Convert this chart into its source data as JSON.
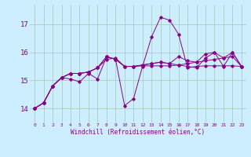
{
  "xlabel": "Windchill (Refroidissement éolien,°C)",
  "bg_color": "#cceeff",
  "grid_color": "#aaccbb",
  "line_color": "#880088",
  "xlim": [
    -0.5,
    23.5
  ],
  "ylim": [
    13.5,
    17.7
  ],
  "yticks": [
    14,
    15,
    16,
    17
  ],
  "xticks": [
    0,
    1,
    2,
    3,
    4,
    5,
    6,
    7,
    8,
    9,
    10,
    11,
    12,
    13,
    14,
    15,
    16,
    17,
    18,
    19,
    20,
    21,
    22,
    23
  ],
  "series": [
    [
      14.0,
      14.2,
      14.8,
      15.1,
      15.25,
      15.25,
      15.3,
      15.45,
      15.75,
      15.8,
      15.5,
      15.5,
      15.52,
      15.52,
      15.52,
      15.52,
      15.55,
      15.6,
      15.65,
      15.7,
      15.75,
      15.8,
      15.85,
      15.5
    ],
    [
      14.0,
      14.2,
      14.8,
      15.1,
      15.05,
      14.95,
      15.25,
      15.05,
      15.85,
      15.75,
      14.1,
      14.35,
      15.5,
      16.55,
      17.25,
      17.15,
      16.65,
      15.45,
      15.5,
      15.52,
      15.52,
      15.52,
      15.52,
      15.5
    ],
    [
      14.0,
      14.2,
      14.8,
      15.1,
      15.25,
      15.25,
      15.3,
      15.45,
      15.85,
      15.75,
      15.5,
      15.5,
      15.55,
      15.6,
      15.65,
      15.6,
      15.55,
      15.5,
      15.45,
      15.8,
      16.0,
      15.5,
      16.0,
      15.5
    ],
    [
      14.0,
      14.2,
      14.8,
      15.1,
      15.25,
      15.25,
      15.3,
      15.45,
      15.85,
      15.75,
      15.5,
      15.5,
      15.55,
      15.6,
      15.65,
      15.6,
      15.85,
      15.7,
      15.65,
      15.95,
      16.0,
      15.8,
      16.0,
      15.5
    ]
  ]
}
